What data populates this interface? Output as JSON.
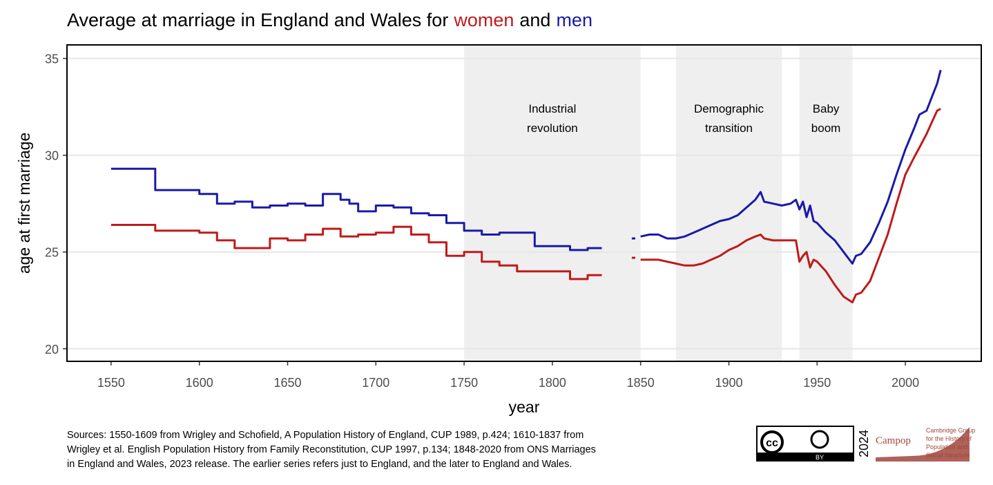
{
  "chart_data": {
    "type": "line",
    "title_prefix": "Average at marriage in England and Wales for",
    "title_joiner": "and",
    "x_label": "year",
    "y_label": "age at first marriage",
    "xlim": [
      1525,
      2043
    ],
    "ylim": [
      19.35,
      35.7
    ],
    "xticks": [
      1550,
      1600,
      1650,
      1700,
      1750,
      1800,
      1850,
      1900,
      1950,
      2000
    ],
    "yticks": [
      20,
      25,
      30,
      35
    ],
    "grid": true,
    "shading": [
      {
        "from": 1750,
        "to": 1850,
        "label": [
          "Industrial",
          "revolution"
        ]
      },
      {
        "from": 1870,
        "to": 1930,
        "label": [
          "Demographic",
          "transition"
        ]
      },
      {
        "from": 1940,
        "to": 1970,
        "label": [
          "Baby",
          "boom"
        ]
      }
    ],
    "series": [
      {
        "name": "women",
        "color": "#c01a1a",
        "x": [
          1550,
          1575,
          1575,
          1600,
          1600,
          1610,
          1610,
          1620,
          1620,
          1640,
          1640,
          1650,
          1650,
          1660,
          1660,
          1670,
          1670,
          1680,
          1680,
          1690,
          1690,
          1700,
          1700,
          1710,
          1710,
          1720,
          1720,
          1730,
          1730,
          1740,
          1740,
          1750,
          1750,
          1760,
          1760,
          1770,
          1770,
          1780,
          1780,
          1810,
          1810,
          1820,
          1820,
          1828,
          1838,
          1845,
          1847,
          1849,
          1850,
          1855,
          1860,
          1865,
          1870,
          1875,
          1880,
          1885,
          1890,
          1895,
          1900,
          1905,
          1910,
          1915,
          1918,
          1920,
          1925,
          1930,
          1935,
          1938,
          1940,
          1942,
          1944,
          1946,
          1948,
          1950,
          1955,
          1960,
          1965,
          1970,
          1972,
          1975,
          1980,
          1985,
          1990,
          1995,
          2000,
          2005,
          2008,
          2012,
          2015,
          2018,
          2020
        ],
        "values": [
          26.4,
          26.4,
          26.1,
          26.1,
          26.0,
          26.0,
          25.6,
          25.6,
          25.2,
          25.2,
          25.7,
          25.7,
          25.6,
          25.6,
          25.9,
          25.9,
          26.2,
          26.2,
          25.8,
          25.8,
          25.9,
          25.9,
          26.0,
          26.0,
          26.3,
          26.3,
          25.9,
          25.9,
          25.5,
          25.5,
          24.8,
          24.8,
          25.0,
          25.0,
          24.5,
          24.5,
          24.3,
          24.3,
          24.0,
          24.0,
          23.6,
          23.6,
          23.8,
          23.8,
          null,
          24.7,
          24.7,
          null,
          24.6,
          24.6,
          24.6,
          24.5,
          24.4,
          24.3,
          24.3,
          24.4,
          24.6,
          24.8,
          25.1,
          25.3,
          25.6,
          25.8,
          25.9,
          25.7,
          25.6,
          25.6,
          25.6,
          25.6,
          24.5,
          24.8,
          25.0,
          24.2,
          24.6,
          24.5,
          24.0,
          23.3,
          22.7,
          22.4,
          22.8,
          22.9,
          23.5,
          24.7,
          25.9,
          27.5,
          29.0,
          29.9,
          30.4,
          31.1,
          31.7,
          32.3,
          32.4
        ]
      },
      {
        "name": "men",
        "color": "#1a1aa8",
        "x": [
          1550,
          1575,
          1575,
          1600,
          1600,
          1610,
          1610,
          1620,
          1620,
          1630,
          1630,
          1640,
          1640,
          1650,
          1650,
          1660,
          1660,
          1670,
          1670,
          1680,
          1680,
          1685,
          1685,
          1690,
          1690,
          1700,
          1700,
          1710,
          1710,
          1720,
          1720,
          1730,
          1730,
          1740,
          1740,
          1750,
          1750,
          1760,
          1760,
          1770,
          1770,
          1790,
          1790,
          1810,
          1810,
          1820,
          1820,
          1828,
          1838,
          1845,
          1847,
          1849,
          1850,
          1855,
          1860,
          1865,
          1870,
          1875,
          1880,
          1885,
          1890,
          1895,
          1900,
          1905,
          1910,
          1915,
          1918,
          1920,
          1925,
          1930,
          1935,
          1938,
          1940,
          1942,
          1944,
          1946,
          1948,
          1950,
          1955,
          1960,
          1965,
          1970,
          1972,
          1975,
          1980,
          1985,
          1990,
          1995,
          2000,
          2005,
          2008,
          2012,
          2015,
          2018,
          2020
        ],
        "values": [
          29.3,
          29.3,
          28.2,
          28.2,
          28.0,
          28.0,
          27.5,
          27.5,
          27.6,
          27.6,
          27.3,
          27.3,
          27.4,
          27.4,
          27.5,
          27.5,
          27.4,
          27.4,
          28.0,
          28.0,
          27.7,
          27.7,
          27.5,
          27.5,
          27.1,
          27.1,
          27.4,
          27.4,
          27.3,
          27.3,
          27.0,
          27.0,
          26.9,
          26.9,
          26.5,
          26.5,
          26.1,
          26.1,
          25.9,
          25.9,
          26.0,
          26.0,
          25.3,
          25.3,
          25.1,
          25.1,
          25.2,
          25.2,
          null,
          25.7,
          25.7,
          null,
          25.8,
          25.9,
          25.9,
          25.7,
          25.7,
          25.8,
          26.0,
          26.2,
          26.4,
          26.6,
          26.7,
          26.9,
          27.3,
          27.7,
          28.1,
          27.6,
          27.5,
          27.4,
          27.5,
          27.7,
          27.2,
          27.6,
          26.8,
          27.4,
          26.6,
          26.5,
          26.0,
          25.6,
          25.0,
          24.4,
          24.8,
          24.9,
          25.5,
          26.5,
          27.6,
          29.0,
          30.3,
          31.4,
          32.1,
          32.3,
          33.0,
          33.7,
          34.4
        ]
      }
    ],
    "sources": [
      "Sources: 1550-1609 from Wrigley and Schofield, A Population History of England, CUP 1989, p.424; 1610-1837 from",
      "Wrigley et al. English Population History from Family Reconstitution, CUP 1997, p.134; 1848-2020 from ONS Marriages",
      "in England and Wales, 2023 release. The earlier series refers just to England, and the later to England and Wales."
    ],
    "license": {
      "cc": "cc",
      "by": "BY",
      "year": "2024"
    },
    "logo": {
      "name": "Campop",
      "lines": [
        "Cambridge Group",
        "for the History of",
        "Population and",
        "Social Structure"
      ]
    }
  }
}
